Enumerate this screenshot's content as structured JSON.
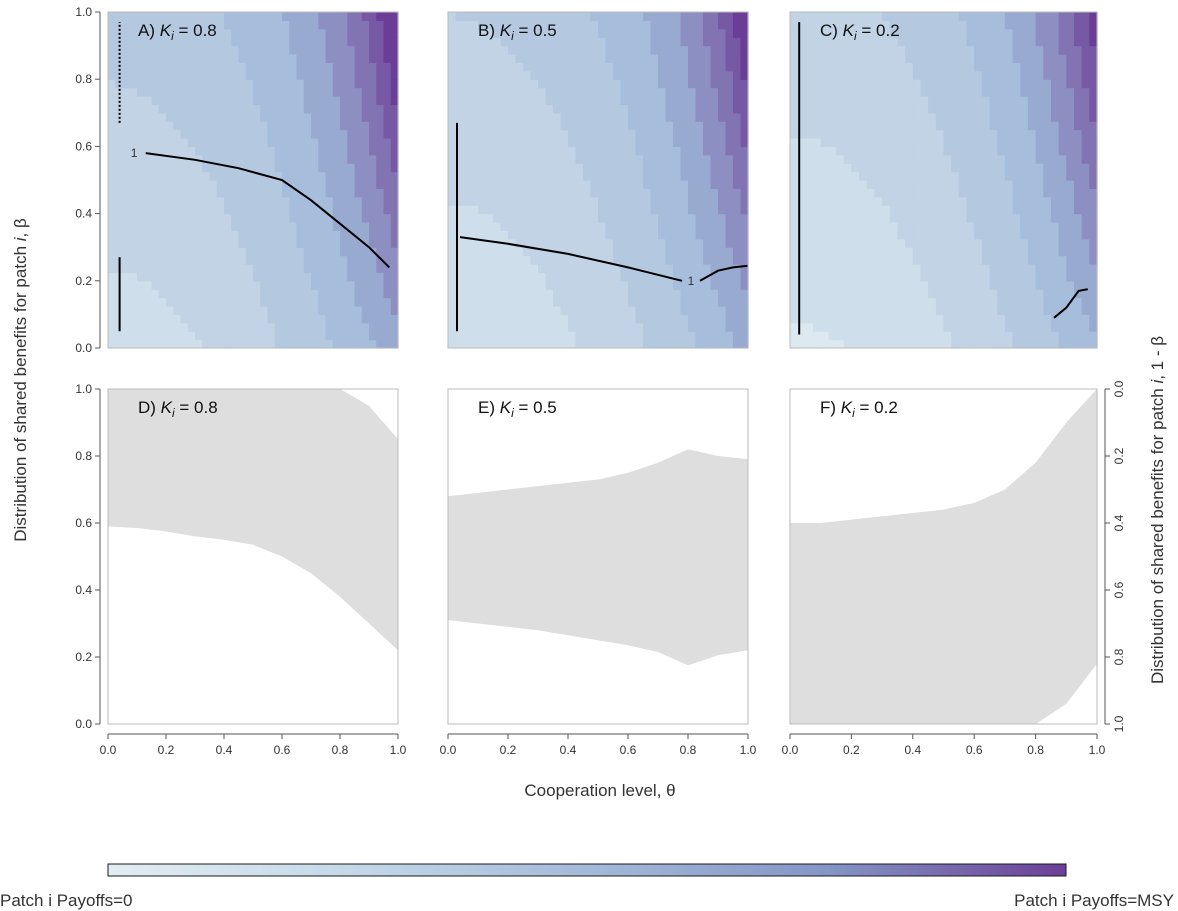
{
  "figure": {
    "x_axis_title": "Cooperation level, θ",
    "y_axis_title_left_parts": [
      "Distribution of shared benefits for patch ",
      "i",
      ", β"
    ],
    "y_axis_title_right_parts": [
      "Distribution of shared benefits for patch ",
      "i",
      ", 1 - β"
    ],
    "colorbar_low_label": "Patch i Payoffs=0",
    "colorbar_high_label": "Patch i Payoffs=MSY",
    "colors": {
      "payoff_low": "#dde9f0",
      "payoff_mid": "#9fb8d8",
      "payoff_high": "#6a3d96",
      "feasible_region": "#dedede",
      "curve": "#000000"
    },
    "x_ticks": [
      "0.0",
      "0.2",
      "0.4",
      "0.6",
      "0.8",
      "1.0"
    ],
    "y_ticks": [
      "0.0",
      "0.2",
      "0.4",
      "0.6",
      "0.8",
      "1.0"
    ],
    "right_ticks": [
      "1.0",
      "0.8",
      "0.6",
      "0.4",
      "0.2",
      "0.0"
    ]
  },
  "chart_data": [
    {
      "type": "heatmap",
      "panel": "A",
      "label_prefix": "A) ",
      "K_value": "0.8",
      "xlim": [
        0,
        1
      ],
      "ylim": [
        0,
        1
      ],
      "value": "Patch i payoff (0 to MSY), increasing toward θ = 1, β = 1",
      "contour_label": "1",
      "boundary_curve": [
        [
          0.13,
          0.58
        ],
        [
          0.3,
          0.56
        ],
        [
          0.45,
          0.535
        ],
        [
          0.6,
          0.5
        ],
        [
          0.7,
          0.44
        ],
        [
          0.8,
          0.37
        ],
        [
          0.9,
          0.3
        ],
        [
          0.97,
          0.24
        ]
      ]
    },
    {
      "type": "heatmap",
      "panel": "B",
      "label_prefix": "B) ",
      "K_value": "0.5",
      "xlim": [
        0,
        1
      ],
      "ylim": [
        0,
        1
      ],
      "value": "Patch i payoff (0 to MSY), increasing toward θ = 1, β = 1",
      "contour_label": "1",
      "boundary_curve": [
        [
          0.04,
          0.33
        ],
        [
          0.2,
          0.31
        ],
        [
          0.4,
          0.28
        ],
        [
          0.6,
          0.24
        ],
        [
          0.78,
          0.2
        ]
      ],
      "boundary_curve_2": [
        [
          0.84,
          0.2
        ],
        [
          0.9,
          0.23
        ],
        [
          0.95,
          0.24
        ],
        [
          1.0,
          0.245
        ]
      ]
    },
    {
      "type": "heatmap",
      "panel": "C",
      "label_prefix": "C) ",
      "K_value": "0.2",
      "xlim": [
        0,
        1
      ],
      "ylim": [
        0,
        1
      ],
      "value": "Patch i payoff (0 to MSY), increasing toward θ = 1, β = 1",
      "boundary_curve": [
        [
          0.86,
          0.09
        ],
        [
          0.9,
          0.12
        ],
        [
          0.94,
          0.17
        ],
        [
          0.97,
          0.175
        ]
      ]
    },
    {
      "type": "area",
      "panel": "D",
      "label_prefix": "D) ",
      "K_value": "0.8",
      "xlim": [
        0,
        1
      ],
      "ylim": [
        0,
        1
      ],
      "x": [
        0.0,
        0.1,
        0.2,
        0.3,
        0.4,
        0.5,
        0.6,
        0.7,
        0.8,
        0.9,
        1.0
      ],
      "lower": [
        0.59,
        0.585,
        0.575,
        0.56,
        0.55,
        0.535,
        0.5,
        0.45,
        0.38,
        0.3,
        0.22
      ],
      "upper": [
        1.0,
        1.0,
        1.0,
        1.0,
        1.0,
        1.0,
        1.0,
        1.0,
        1.0,
        0.95,
        0.85
      ]
    },
    {
      "type": "area",
      "panel": "E",
      "label_prefix": "E) ",
      "K_value": "0.5",
      "xlim": [
        0,
        1
      ],
      "ylim": [
        0,
        1
      ],
      "x": [
        0.0,
        0.1,
        0.2,
        0.3,
        0.4,
        0.5,
        0.6,
        0.7,
        0.8,
        0.85,
        0.9,
        1.0
      ],
      "lower": [
        0.31,
        0.3,
        0.29,
        0.28,
        0.265,
        0.25,
        0.235,
        0.215,
        0.175,
        0.19,
        0.205,
        0.22
      ],
      "upper": [
        0.68,
        0.69,
        0.7,
        0.71,
        0.72,
        0.73,
        0.75,
        0.78,
        0.82,
        0.81,
        0.8,
        0.79
      ]
    },
    {
      "type": "area",
      "panel": "F",
      "label_prefix": "F) ",
      "K_value": "0.2",
      "xlim": [
        0,
        1
      ],
      "ylim": [
        0,
        1
      ],
      "x": [
        0.0,
        0.1,
        0.2,
        0.3,
        0.4,
        0.5,
        0.6,
        0.7,
        0.8,
        0.9,
        1.0
      ],
      "lower": [
        0.0,
        0.0,
        0.0,
        0.0,
        0.0,
        0.0,
        0.0,
        0.0,
        0.0,
        0.06,
        0.18
      ],
      "upper": [
        0.6,
        0.6,
        0.61,
        0.62,
        0.63,
        0.64,
        0.66,
        0.7,
        0.78,
        0.9,
        1.0
      ]
    }
  ]
}
